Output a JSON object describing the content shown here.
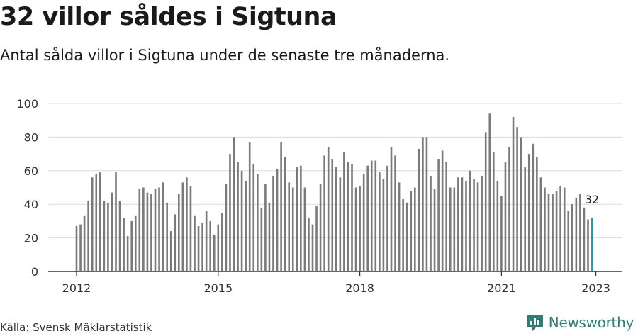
{
  "chart_data": {
    "type": "bar",
    "title": "32 villor såldes i Sigtuna",
    "subtitle": "Antal sålda villor i Sigtuna under de senaste tre månaderna.",
    "source": "Källa: Svensk Mäklarstatistik",
    "brand": "Newsworthy",
    "x_ticks": [
      "2012",
      "2015",
      "2018",
      "2021",
      "2023"
    ],
    "y_ticks": [
      "0",
      "20",
      "40",
      "60",
      "80",
      "100"
    ],
    "ylim": [
      0,
      100
    ],
    "grid": true,
    "start": "2012-01",
    "values": [
      27,
      28,
      33,
      42,
      56,
      58,
      59,
      42,
      41,
      47,
      59,
      42,
      32,
      21,
      30,
      33,
      49,
      50,
      47,
      46,
      49,
      50,
      53,
      41,
      24,
      34,
      46,
      53,
      56,
      51,
      33,
      27,
      29,
      36,
      30,
      22,
      28,
      35,
      52,
      70,
      80,
      65,
      60,
      54,
      77,
      64,
      58,
      38,
      52,
      41,
      57,
      61,
      77,
      68,
      53,
      50,
      62,
      63,
      50,
      32,
      28,
      39,
      52,
      69,
      74,
      67,
      62,
      56,
      71,
      65,
      64,
      50,
      51,
      58,
      63,
      66,
      66,
      59,
      55,
      63,
      74,
      69,
      53,
      43,
      41,
      48,
      50,
      73,
      80,
      80,
      57,
      49,
      67,
      72,
      65,
      50,
      50,
      56,
      56,
      54,
      60,
      55,
      53,
      57,
      83,
      94,
      71,
      54,
      45,
      65,
      74,
      92,
      86,
      80,
      62,
      70,
      76,
      68,
      56,
      50,
      46,
      46,
      48,
      51,
      50,
      36,
      40,
      44,
      46,
      38,
      31,
      32
    ],
    "highlight_last": true,
    "last_label": "32",
    "colors": {
      "bar": "#7a7a7a",
      "highlight": "#2a9aa8",
      "grid": "#dcdcdc",
      "axis": "#333333",
      "brand": "#2b7f73"
    }
  }
}
